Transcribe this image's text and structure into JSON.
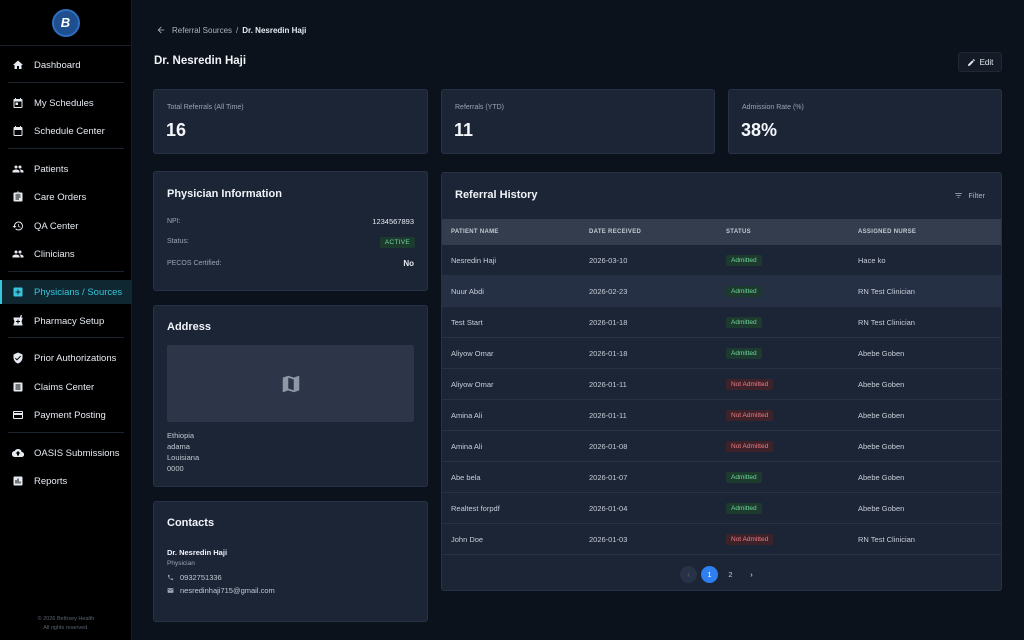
{
  "brand": {
    "logo_text": "B"
  },
  "sidebar": {
    "items": [
      {
        "label": "Dashboard",
        "icon": "home-icon"
      },
      {
        "label": "My Schedules",
        "icon": "calendar-icon"
      },
      {
        "label": "Schedule Center",
        "icon": "calendar-month-icon"
      },
      {
        "label": "Patients",
        "icon": "people-icon"
      },
      {
        "label": "Care Orders",
        "icon": "clipboard-icon"
      },
      {
        "label": "QA Center",
        "icon": "history-icon"
      },
      {
        "label": "Clinicians",
        "icon": "group-icon"
      },
      {
        "label": "Physicians / Sources",
        "icon": "medical-plus-icon",
        "active": true
      },
      {
        "label": "Pharmacy Setup",
        "icon": "pharmacy-icon"
      },
      {
        "label": "Prior Authorizations",
        "icon": "shield-check-icon"
      },
      {
        "label": "Claims Center",
        "icon": "document-icon"
      },
      {
        "label": "Payment Posting",
        "icon": "credit-card-icon"
      },
      {
        "label": "OASIS Submissions",
        "icon": "cloud-upload-icon"
      },
      {
        "label": "Reports",
        "icon": "bar-chart-icon"
      }
    ],
    "copyright_1": "© 2026 Bethsey Health",
    "copyright_2": "All rights reserved."
  },
  "breadcrumb": {
    "parent": "Referral Sources",
    "separator": "/",
    "current": "Dr. Nesredin Haji"
  },
  "header": {
    "title": "Dr. Nesredin Haji",
    "edit_label": "Edit"
  },
  "stats": [
    {
      "label": "Total Referrals (All Time)",
      "value": "16"
    },
    {
      "label": "Referrals (YTD)",
      "value": "11"
    },
    {
      "label": "Admission Rate (%)",
      "value": "38%"
    }
  ],
  "physician_info": {
    "title": "Physician Information",
    "npi_label": "NPI:",
    "npi_value": "1234567893",
    "status_label": "Status:",
    "status_value": "ACTIVE",
    "pecos_label": "PECOS Certified:",
    "pecos_value": "No"
  },
  "address": {
    "title": "Address",
    "lines": [
      "Ethiopia",
      "adama",
      "Louisiana",
      "0000"
    ]
  },
  "contacts": {
    "title": "Contacts",
    "name": "Dr. Nesredin Haji",
    "role": "Physician",
    "phone": "0932751336",
    "email": "nesredinhaji715@gmail.com"
  },
  "referral_history": {
    "title": "Referral History",
    "filter_label": "Filter",
    "columns": [
      "PATIENT NAME",
      "DATE RECEIVED",
      "STATUS",
      "ASSIGNED NURSE"
    ],
    "rows": [
      {
        "patient": "Nesredin Haji",
        "date": "2026-03-10",
        "status": "Admitted",
        "nurse": "Hace ko"
      },
      {
        "patient": "Nuur Abdi",
        "date": "2026-02-23",
        "status": "Admitted",
        "nurse": "RN Test Clinician"
      },
      {
        "patient": "Test Start",
        "date": "2026-01-18",
        "status": "Admitted",
        "nurse": "RN Test Clinician"
      },
      {
        "patient": "Aliyow Omar",
        "date": "2026-01-18",
        "status": "Admitted",
        "nurse": "Abebe Goben"
      },
      {
        "patient": "Aliyow Omar",
        "date": "2026-01-11",
        "status": "Not Admitted",
        "nurse": "Abebe Goben"
      },
      {
        "patient": "Amina Ali",
        "date": "2026-01-11",
        "status": "Not Admitted",
        "nurse": "Abebe Goben"
      },
      {
        "patient": "Amina Ali",
        "date": "2026-01-08",
        "status": "Not Admitted",
        "nurse": "Abebe Goben"
      },
      {
        "patient": "Abe bela",
        "date": "2026-01-07",
        "status": "Admitted",
        "nurse": "Abebe Goben"
      },
      {
        "patient": "Realtest forpdf",
        "date": "2026-01-04",
        "status": "Admitted",
        "nurse": "Abebe Goben"
      },
      {
        "patient": "John Doe",
        "date": "2026-01-03",
        "status": "Not Admitted",
        "nurse": "RN Test Clinician"
      }
    ],
    "pagination": {
      "prev": "‹",
      "pages": [
        "1",
        "2"
      ],
      "current": "1",
      "next": "›"
    }
  },
  "colors": {
    "accent": "#38c6dc",
    "primary": "#2f7ff0",
    "admitted_text": "#6fd79a",
    "not_admitted_text": "#ee7b86"
  }
}
